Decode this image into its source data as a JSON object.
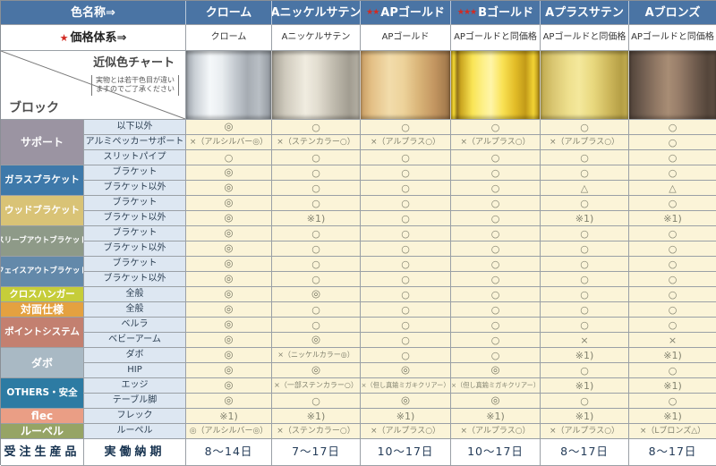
{
  "header": {
    "color_name_label": "色名称⇒",
    "price_star": "★",
    "price_label": "価格体系⇒",
    "columns": [
      {
        "name": "クローム",
        "stars": "",
        "price": "クローム",
        "swatch": "chrome",
        "swatch_colors": [
          "#9aa0a7 0%",
          "#c9cfd5 10%",
          "#f5f8fa 28%",
          "#e9edf0 42%",
          "#c3c9cf 58%",
          "#a6acb3 72%",
          "#b9bfc5 86%",
          "#8f959c 100%"
        ]
      },
      {
        "name": "Aニッケルサテン",
        "stars": "",
        "price": "Aニッケルサテン",
        "swatch": "nickel-satin",
        "swatch_colors": [
          "#a39f94 0%",
          "#cfcabd 15%",
          "#f0ece0 38%",
          "#e2ddd0 52%",
          "#c0bbae 70%",
          "#a29d91 88%",
          "#b5b0a4 100%"
        ]
      },
      {
        "name": "APゴールド",
        "stars": "★★",
        "price": "APゴールド",
        "swatch": "ap-gold",
        "swatch_colors": [
          "#c79c63 0%",
          "#e3bf85 12%",
          "#f2dcab 32%",
          "#edd29a 48%",
          "#d9b478 65%",
          "#c39661 82%",
          "#a97f50 94%",
          "#8f6a42 100%"
        ]
      },
      {
        "name": "Bゴールド",
        "stars": "★★★",
        "price": "APゴールドと同価格",
        "swatch": "b-gold",
        "swatch_colors": [
          "#d3ab1e 0%",
          "#f6dc35 3%",
          "#93741a 7%",
          "#caa51f 11%",
          "#f9e455 24%",
          "#fdf089 36%",
          "#fff5a8 45%",
          "#f9e255 58%",
          "#e3bd28 72%",
          "#c29a18 84%",
          "#f2d334 93%",
          "#ab8614 100%"
        ]
      },
      {
        "name": "Aプラスサテン",
        "stars": "",
        "price": "APゴールドと同価格",
        "swatch": "a-brass-satin",
        "swatch_colors": [
          "#bfa94e 0%",
          "#d9c671 14%",
          "#eee08e 32%",
          "#f4e89c 44%",
          "#e8d87e 60%",
          "#cdb75b 78%",
          "#b49e45 92%",
          "#c4ae52 100%"
        ]
      },
      {
        "name": "Aブロンズ",
        "stars": "",
        "price": "APゴールドと同価格",
        "swatch": "a-bronze",
        "swatch_colors": [
          "#4f4138 0%",
          "#6d5b4e 14%",
          "#937a66 32%",
          "#a88d75 45%",
          "#967c68 58%",
          "#705c4e 76%",
          "#55463b 90%",
          "#5e4e42 100%"
        ]
      }
    ]
  },
  "corner": {
    "chart_label": "近似色チャート",
    "note_line1": "実物とは若干色目が違い",
    "note_line2": "ますのでご了承ください",
    "block_label": "ブロック"
  },
  "groups": [
    {
      "label": "サポート",
      "color": "#9b94a2",
      "rows": [
        {
          "label": "以下以外",
          "cells": [
            "◎",
            "○",
            "○",
            "○",
            "○",
            "○"
          ]
        },
        {
          "label": "アルミペッカーサポート",
          "cells": [
            "×（アルシルバー◎）",
            "×（ステンカラー○）",
            "×（アルプラス○）",
            "×（アルプラス○）",
            "×（アルプラス○）",
            "○"
          ]
        },
        {
          "label": "スリットパイプ",
          "cells": [
            "○",
            "○",
            "○",
            "○",
            "○",
            "○"
          ]
        }
      ]
    },
    {
      "label": "ガラスブラケット",
      "color": "#3e79aa",
      "rows": [
        {
          "label": "ブラケット",
          "cells": [
            "◎",
            "○",
            "○",
            "○",
            "○",
            "○"
          ]
        },
        {
          "label": "ブラケット以外",
          "cells": [
            "◎",
            "○",
            "○",
            "○",
            "△",
            "△"
          ]
        }
      ]
    },
    {
      "label": "ウッドブラケット",
      "color": "#d9c376",
      "rows": [
        {
          "label": "ブラケット",
          "cells": [
            "◎",
            "○",
            "○",
            "○",
            "○",
            "○"
          ]
        },
        {
          "label": "ブラケット以外",
          "cells": [
            "◎",
            "※1)",
            "○",
            "○",
            "※1)",
            "※1)"
          ]
        }
      ]
    },
    {
      "label": "スリーブアウトブラケット",
      "color": "#8e9a88",
      "rows": [
        {
          "label": "ブラケット",
          "cells": [
            "◎",
            "○",
            "○",
            "○",
            "○",
            "○"
          ]
        },
        {
          "label": "ブラケット以外",
          "cells": [
            "◎",
            "○",
            "○",
            "○",
            "○",
            "○"
          ]
        }
      ]
    },
    {
      "label": "フェイスアウトブラケット",
      "color": "#6389aa",
      "rows": [
        {
          "label": "ブラケット",
          "cells": [
            "◎",
            "○",
            "○",
            "○",
            "○",
            "○"
          ]
        },
        {
          "label": "ブラケット以外",
          "cells": [
            "◎",
            "○",
            "○",
            "○",
            "○",
            "○"
          ]
        }
      ]
    },
    {
      "label": "クロスハンガー",
      "color": "#c6cd39",
      "rows": [
        {
          "label": "全般",
          "cells": [
            "◎",
            "◎",
            "○",
            "○",
            "○",
            "○"
          ]
        }
      ]
    },
    {
      "label": "対面仕様",
      "color": "#e4a140",
      "rows": [
        {
          "label": "全般",
          "cells": [
            "◎",
            "○",
            "○",
            "○",
            "○",
            "○"
          ]
        }
      ]
    },
    {
      "label": "ポイントシステム",
      "color": "#c38070",
      "rows": [
        {
          "label": "ベルラ",
          "cells": [
            "◎",
            "○",
            "○",
            "○",
            "○",
            "○"
          ]
        },
        {
          "label": "ベビーアーム",
          "cells": [
            "◎",
            "◎",
            "○",
            "○",
            "×",
            "×"
          ]
        }
      ]
    },
    {
      "label": "ダボ",
      "color": "#a9b9c4",
      "rows": [
        {
          "label": "ダボ",
          "cells": [
            "◎",
            "×（ニッケルカラー◎）",
            "○",
            "○",
            "※1)",
            "※1)"
          ]
        },
        {
          "label": "HIP",
          "cells": [
            "◎",
            "◎",
            "◎",
            "◎",
            "○",
            "○"
          ]
        }
      ]
    },
    {
      "label": "OTHERS・安全",
      "color": "#2d7ba3",
      "rows": [
        {
          "label": "エッジ",
          "cells": [
            "◎",
            "×（一部ステンカラー○）",
            "×（但し真鍮ミガキクリアー）",
            "×（但し真鍮ミガキクリアー）",
            "※1)",
            "※1)"
          ]
        },
        {
          "label": "テーブル脚",
          "cells": [
            "◎",
            "○",
            "◎",
            "◎",
            "○",
            "○"
          ]
        }
      ]
    },
    {
      "label": "flec",
      "color": "#ea9e85",
      "rows": [
        {
          "label": "フレック",
          "cells": [
            "※1)",
            "※1)",
            "※1)",
            "※1)",
            "※1)",
            "※1)"
          ]
        }
      ]
    },
    {
      "label": "ルーペル",
      "color": "#96a465",
      "rows": [
        {
          "label": "ルーペル",
          "cells": [
            "◎（アルシルバー◎）",
            "×（ステンカラー○）",
            "×（アルプラス○）",
            "×（アルプラス○）",
            "×（アルプラス○）",
            "×（Lブロンズ△）"
          ]
        }
      ]
    }
  ],
  "footer": {
    "left_label": "受注生産品",
    "sub_label": "実働納期",
    "days": [
      "8～14日",
      "7～17日",
      "10～17日",
      "10～17日",
      "8～17日",
      "8～17日"
    ]
  }
}
